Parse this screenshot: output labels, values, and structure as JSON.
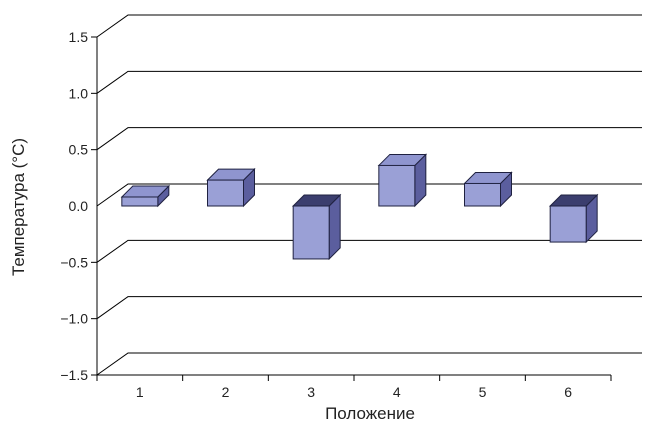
{
  "chart_data": {
    "type": "bar",
    "title": "",
    "xlabel": "Положение",
    "ylabel": "Температура (°C)",
    "categories": [
      "1",
      "2",
      "3",
      "4",
      "5",
      "6"
    ],
    "values": [
      0.08,
      0.23,
      -0.47,
      0.36,
      0.2,
      -0.32
    ],
    "ylim": [
      -1.5,
      1.5
    ],
    "yticks": [
      "1.5",
      "1.0",
      "0.5",
      "0.0",
      "−0.5",
      "−1.0",
      "−1.5"
    ],
    "grid": true,
    "legend": "none",
    "colors": {
      "bar_front": "#9aa0d6",
      "bar_side": "#5b5e9e",
      "bar_top_positive": "#8f95cf",
      "bar_top_negative": "#3b3e6e",
      "stroke": "#1f2140",
      "grid": "#000000"
    }
  }
}
